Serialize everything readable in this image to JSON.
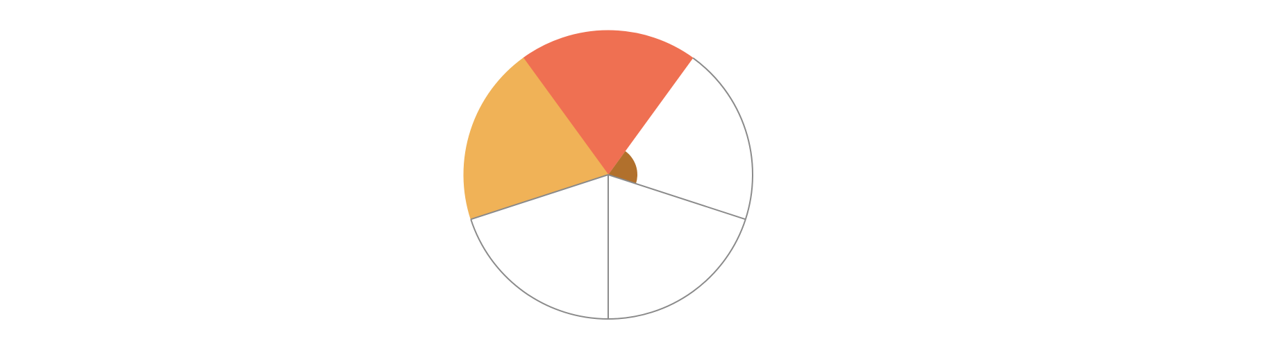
{
  "diagram": {
    "type": "pie-wheel",
    "sector_count": 5,
    "start_angle_deg": 54,
    "sectors": [
      {
        "id": "top",
        "fill": "#ef7052",
        "filled": true
      },
      {
        "id": "upper-left",
        "fill": "#f0b257",
        "filled": true
      },
      {
        "id": "lower-left",
        "fill": "#ffffff",
        "filled": false
      },
      {
        "id": "lower-right",
        "fill": "#ffffff",
        "filled": false
      },
      {
        "id": "upper-right",
        "fill": "#ffffff",
        "filled": false
      }
    ],
    "angle_marker": {
      "color": "#b1702c",
      "sweep_fraction": 0.2
    },
    "outline_color": "#8a8a8a",
    "background": "#ffffff"
  }
}
